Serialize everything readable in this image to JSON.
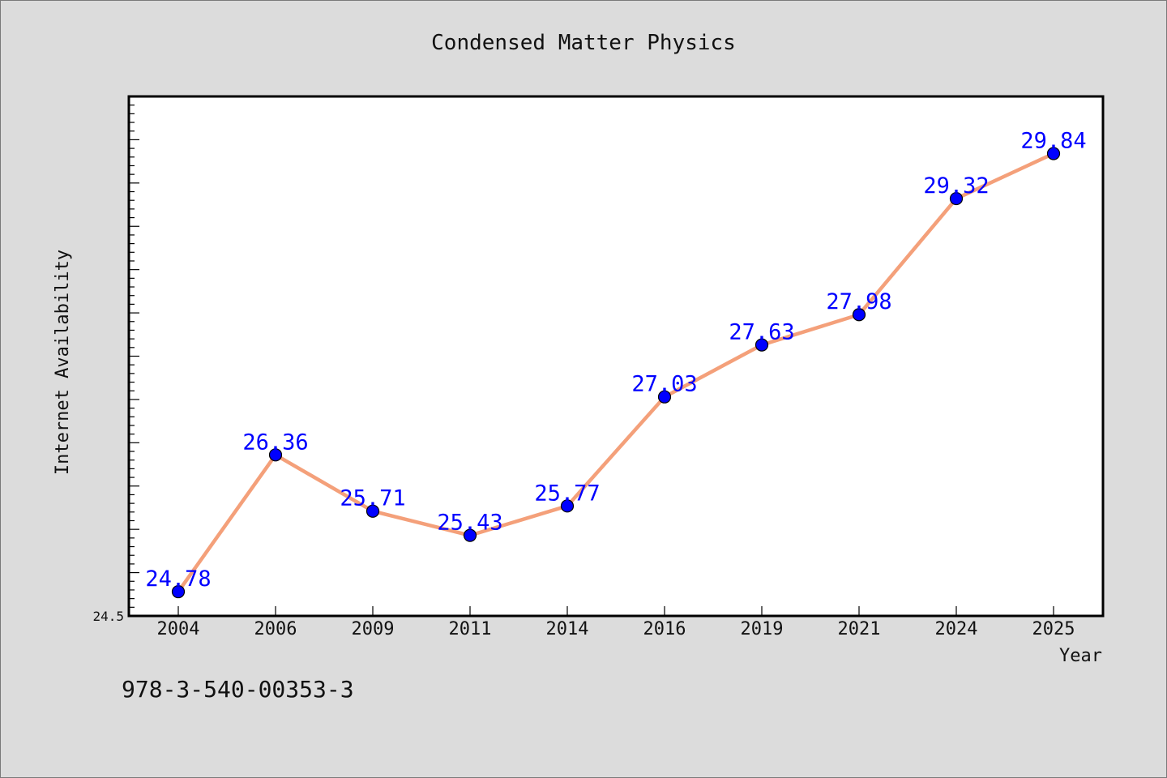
{
  "chart_data": {
    "type": "line",
    "title": "Condensed Matter Physics",
    "xlabel": "Year",
    "ylabel": "Internet Availability",
    "categories": [
      "2004",
      "2006",
      "2009",
      "2011",
      "2014",
      "2016",
      "2019",
      "2021",
      "2024",
      "2025"
    ],
    "series": [
      {
        "values": [
          24.78,
          26.36,
          25.71,
          25.43,
          25.77,
          27.03,
          27.63,
          27.98,
          29.32,
          29.84
        ],
        "labels": [
          "24.78",
          "26.36",
          "25.71",
          "25.43",
          "25.77",
          "27.03",
          "27.63",
          "27.98",
          "29.32",
          "29.84"
        ],
        "color": "#f4a07a",
        "marker_color": "#0000ff"
      }
    ],
    "ylim": [
      24.5,
      30.5
    ],
    "yticks_labeled": [
      "24.5"
    ],
    "grid": false,
    "legend": "none"
  },
  "footer": {
    "isbn": "978-3-540-00353-3"
  },
  "colors": {
    "background": "#dcdcdc",
    "plot_area": "#ffffff",
    "line": "#f4a07a",
    "marker": "#0000ff",
    "data_label": "#0000ff"
  }
}
